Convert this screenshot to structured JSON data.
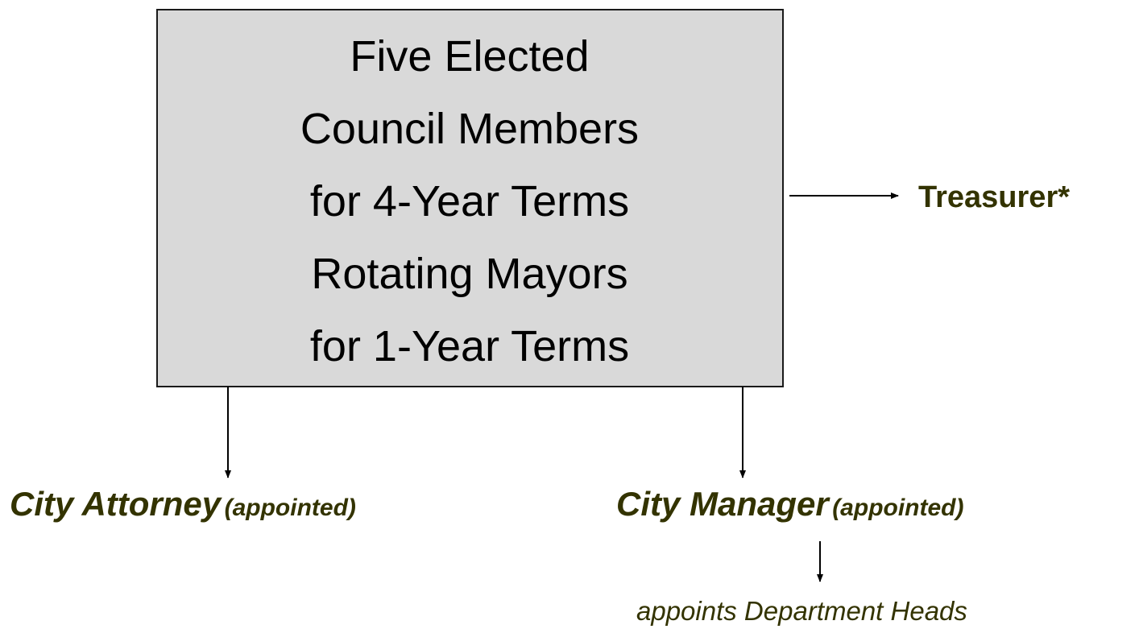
{
  "council": {
    "lines": [
      "Five Elected",
      "Council Members",
      "for 4-Year Terms",
      "Rotating Mayors",
      "for 1-Year Terms"
    ]
  },
  "treasurer": {
    "label": "Treasurer*"
  },
  "attorney": {
    "label": "City Attorney",
    "note": "(appointed)"
  },
  "manager": {
    "label": "City Manager",
    "note": "(appointed)"
  },
  "department_heads": {
    "label": "appoints Department Heads"
  }
}
